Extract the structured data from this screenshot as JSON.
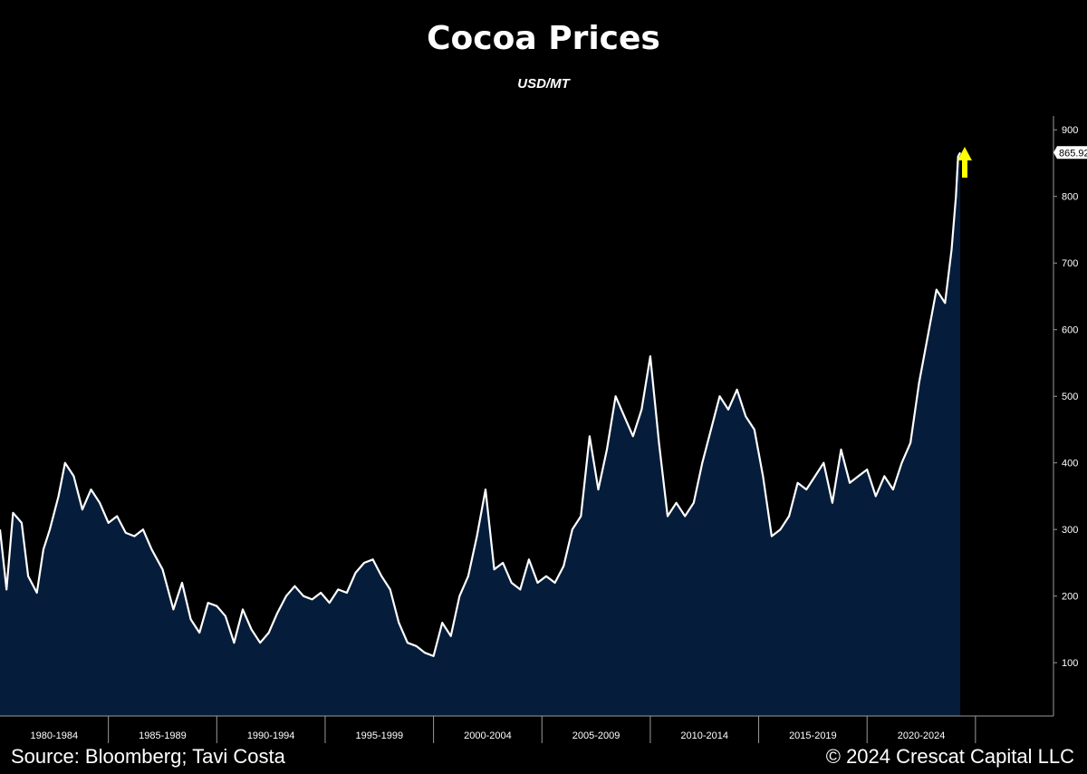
{
  "chart_data": {
    "type": "area",
    "title": "Cocoa Prices",
    "subtitle": "USD/MT",
    "ylim": [
      20,
      918
    ],
    "y_ticks": [
      100,
      200,
      300,
      400,
      500,
      600,
      700,
      800,
      900
    ],
    "x_period_labels": [
      "1980-1984",
      "1985-1989",
      "1990-1994",
      "1995-1999",
      "2000-2004",
      "2005-2009",
      "2010-2014",
      "2015-2019",
      "2020-2024"
    ],
    "x_range": [
      1980.0,
      2028.6
    ],
    "last_value": 865.92,
    "last_value_label": "865.92",
    "grid": false,
    "colors": {
      "background": "#000000",
      "area_fill": "#051c3a",
      "line": "#ffffff",
      "arrow": "#ffff00"
    },
    "annotation": {
      "type": "arrow-up",
      "color": "yellow"
    },
    "series": [
      {
        "x": [
          1980.0,
          1980.3,
          1980.6,
          1981.0,
          1981.3,
          1981.7,
          1982.0,
          1982.3,
          1982.7,
          1983.0,
          1983.4,
          1983.8,
          1984.2,
          1984.6,
          1985.0,
          1985.4,
          1985.8,
          1986.2,
          1986.6,
          1987.0,
          1987.5,
          1988.0,
          1988.4,
          1988.8,
          1989.2,
          1989.6,
          1990.0,
          1990.4,
          1990.8,
          1991.2,
          1991.6,
          1992.0,
          1992.4,
          1992.8,
          1993.2,
          1993.6,
          1994.0,
          1994.4,
          1994.8,
          1995.2,
          1995.6,
          1996.0,
          1996.4,
          1996.8,
          1997.2,
          1997.6,
          1998.0,
          1998.4,
          1998.8,
          1999.2,
          1999.6,
          2000.0,
          2000.4,
          2000.8,
          2001.2,
          2001.6,
          2002.0,
          2002.4,
          2002.8,
          2003.2,
          2003.6,
          2004.0,
          2004.4,
          2004.8,
          2005.2,
          2005.6,
          2006.0,
          2006.4,
          2006.8,
          2007.2,
          2007.6,
          2008.0,
          2008.4,
          2008.8,
          2009.2,
          2009.6,
          2010.0,
          2010.4,
          2010.8,
          2011.2,
          2011.6,
          2012.0,
          2012.4,
          2012.8,
          2013.2,
          2013.6,
          2014.0,
          2014.4,
          2014.8,
          2015.2,
          2015.6,
          2016.0,
          2016.4,
          2016.8,
          2017.2,
          2017.6,
          2018.0,
          2018.4,
          2018.8,
          2019.2,
          2019.6,
          2020.0,
          2020.4,
          2020.8,
          2021.2,
          2021.6,
          2022.0,
          2022.4,
          2022.8,
          2023.2,
          2023.6,
          2023.9,
          2024.1,
          2024.2,
          2024.3
        ],
        "values": [
          300,
          210,
          325,
          310,
          230,
          205,
          270,
          300,
          350,
          400,
          380,
          330,
          360,
          340,
          310,
          320,
          295,
          290,
          300,
          270,
          240,
          180,
          220,
          165,
          145,
          190,
          185,
          170,
          130,
          180,
          150,
          130,
          145,
          175,
          200,
          215,
          200,
          195,
          205,
          190,
          210,
          205,
          235,
          250,
          255,
          230,
          210,
          160,
          130,
          125,
          115,
          110,
          160,
          140,
          200,
          230,
          290,
          360,
          240,
          250,
          220,
          210,
          255,
          220,
          230,
          220,
          245,
          300,
          320,
          440,
          360,
          420,
          500,
          470,
          440,
          480,
          560,
          430,
          320,
          340,
          320,
          340,
          400,
          450,
          500,
          480,
          510,
          470,
          450,
          380,
          290,
          300,
          320,
          370,
          360,
          380,
          400,
          340,
          420,
          370,
          380,
          390,
          350,
          380,
          360,
          400,
          430,
          520,
          590,
          660,
          640,
          720,
          800,
          860,
          865.92
        ]
      }
    ]
  },
  "footer": {
    "source": "Source: Bloomberg; Tavi Costa",
    "copyright": "© 2024 Crescat Capital LLC"
  }
}
